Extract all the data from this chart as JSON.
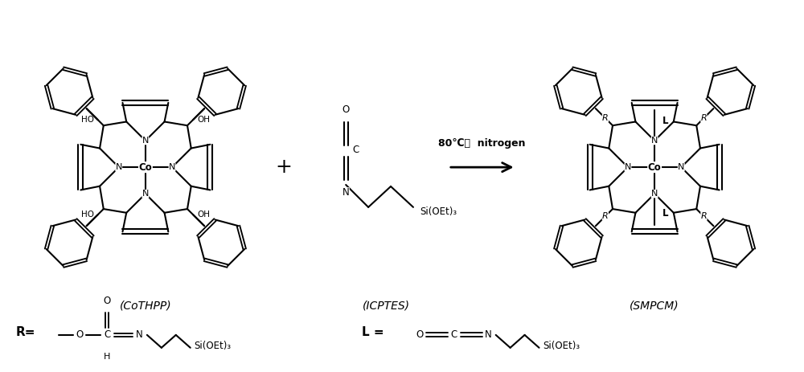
{
  "bg_color": "#ffffff",
  "label_cothpp": "(CoTHPP)",
  "label_icptes": "(ICPTES)",
  "label_smpcm": "(SMPCM)",
  "condition_text": "80℃，  nitrogen",
  "plus_sign": "+",
  "R_label": "R=",
  "L_label": "L =",
  "figsize": [
    10.0,
    4.63
  ],
  "dpi": 100
}
